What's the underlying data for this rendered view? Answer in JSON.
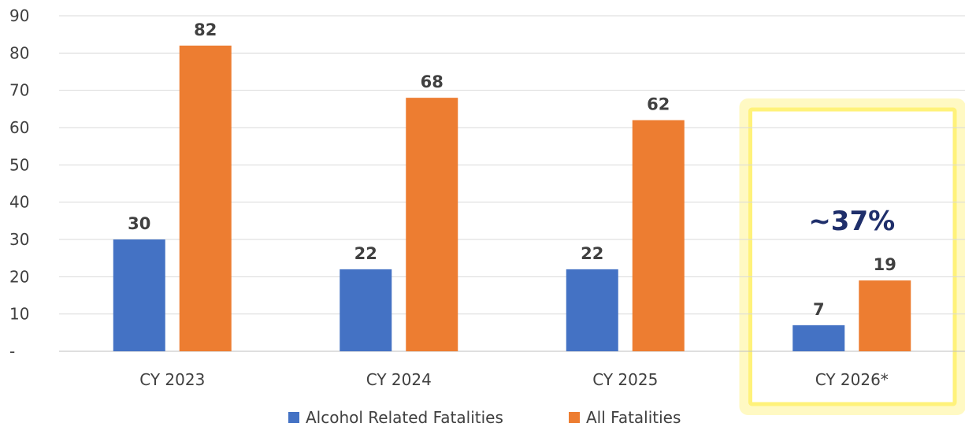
{
  "chart_data": {
    "type": "bar",
    "categories": [
      "CY 2023",
      "CY 2024",
      "CY 2025",
      "CY 2026*"
    ],
    "series": [
      {
        "name": "Alcohol Related Fatalities",
        "values": [
          30,
          22,
          22,
          7
        ],
        "color": "#4472c4"
      },
      {
        "name": "All Fatalities",
        "values": [
          82,
          68,
          62,
          19
        ],
        "color": "#ed7d31"
      }
    ],
    "ylim": [
      0,
      90
    ],
    "yticks": [
      0,
      10,
      20,
      30,
      40,
      50,
      60,
      70,
      80,
      90
    ],
    "ytick_labels": [
      "-",
      "10",
      "20",
      "30",
      "40",
      "50",
      "60",
      "70",
      "80",
      "90"
    ],
    "grid": true,
    "legend_position": "bottom-center",
    "data_labels": true,
    "highlight": {
      "category": "CY 2026*",
      "color": "#fff27a"
    },
    "annotation": {
      "text": "~37%",
      "category": "CY 2026*",
      "color": "#1f2f6b"
    }
  }
}
